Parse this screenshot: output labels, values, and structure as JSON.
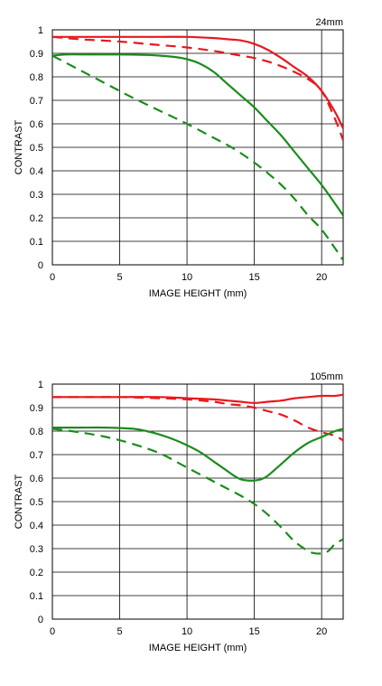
{
  "chart_data": [
    {
      "type": "line",
      "title": "24mm",
      "xlabel": "IMAGE HEIGHT (mm)",
      "ylabel": "CONTRAST",
      "xlim": [
        0,
        21.6
      ],
      "ylim": [
        0,
        1
      ],
      "xticks": [
        0,
        5,
        10,
        15,
        20
      ],
      "xtick_labels": [
        "0",
        "5",
        "10",
        "15",
        "20"
      ],
      "yticks": [
        0,
        0.1,
        0.2,
        0.3,
        0.4,
        0.5,
        0.6,
        0.7,
        0.8,
        0.9,
        1
      ],
      "ytick_labels": [
        "0",
        "0.1",
        "0.2",
        "0.3",
        "0.4",
        "0.5",
        "0.6",
        "0.7",
        "0.8",
        "0.9",
        "1"
      ],
      "grid": true,
      "series": [
        {
          "color": "#e8191e",
          "dash": "solid",
          "x": [
            0,
            2,
            5,
            8,
            10,
            12,
            13,
            14,
            15,
            16,
            17,
            18,
            19,
            20,
            21,
            21.6
          ],
          "y": [
            0.97,
            0.97,
            0.97,
            0.97,
            0.97,
            0.965,
            0.96,
            0.955,
            0.94,
            0.915,
            0.88,
            0.84,
            0.8,
            0.74,
            0.65,
            0.58
          ]
        },
        {
          "color": "#e8191e",
          "dash": "dashed",
          "x": [
            0,
            2,
            5,
            8,
            10,
            12,
            14,
            15,
            16,
            17,
            18,
            19,
            20,
            21,
            21.6
          ],
          "y": [
            0.97,
            0.96,
            0.95,
            0.935,
            0.925,
            0.91,
            0.89,
            0.88,
            0.865,
            0.845,
            0.82,
            0.79,
            0.74,
            0.62,
            0.53
          ]
        },
        {
          "color": "#1c8c1c",
          "dash": "solid",
          "x": [
            0,
            1,
            3,
            5,
            7,
            8,
            9,
            10,
            11,
            12,
            13,
            14,
            15,
            16,
            17,
            18,
            19,
            20,
            21,
            21.6
          ],
          "y": [
            0.89,
            0.895,
            0.895,
            0.895,
            0.893,
            0.89,
            0.885,
            0.875,
            0.855,
            0.82,
            0.77,
            0.72,
            0.67,
            0.61,
            0.55,
            0.48,
            0.41,
            0.34,
            0.26,
            0.21
          ]
        },
        {
          "color": "#1c8c1c",
          "dash": "dashed",
          "x": [
            0,
            2,
            4,
            6,
            8,
            10,
            12,
            13,
            14,
            15,
            16,
            17,
            18,
            19,
            20,
            21,
            21.6
          ],
          "y": [
            0.89,
            0.83,
            0.77,
            0.71,
            0.655,
            0.6,
            0.54,
            0.51,
            0.475,
            0.435,
            0.39,
            0.34,
            0.28,
            0.21,
            0.15,
            0.07,
            0.02
          ]
        }
      ]
    },
    {
      "type": "line",
      "title": "105mm",
      "xlabel": "IMAGE HEIGHT (mm)",
      "ylabel": "CONTRAST",
      "xlim": [
        0,
        21.6
      ],
      "ylim": [
        0,
        1
      ],
      "xticks": [
        0,
        5,
        10,
        15,
        20
      ],
      "xtick_labels": [
        "0",
        "5",
        "10",
        "15",
        "20"
      ],
      "yticks": [
        0,
        0.1,
        0.2,
        0.3,
        0.4,
        0.5,
        0.6,
        0.7,
        0.8,
        0.9,
        1
      ],
      "ytick_labels": [
        "0",
        "0.1",
        "0.2",
        "0.3",
        "0.4",
        "0.5",
        "0.6",
        "0.7",
        "0.8",
        "0.9",
        "1"
      ],
      "grid": true,
      "series": [
        {
          "color": "#e8191e",
          "dash": "solid",
          "x": [
            0,
            3,
            5,
            8,
            10,
            12,
            13,
            14,
            15,
            16,
            17,
            18,
            19,
            20,
            21,
            21.6
          ],
          "y": [
            0.945,
            0.945,
            0.945,
            0.945,
            0.94,
            0.935,
            0.93,
            0.925,
            0.92,
            0.925,
            0.93,
            0.94,
            0.945,
            0.95,
            0.95,
            0.955
          ]
        },
        {
          "color": "#e8191e",
          "dash": "dashed",
          "x": [
            0,
            3,
            5,
            8,
            10,
            12,
            13,
            14,
            15,
            16,
            17,
            18,
            19,
            20,
            21,
            21.6
          ],
          "y": [
            0.945,
            0.945,
            0.945,
            0.94,
            0.935,
            0.925,
            0.915,
            0.91,
            0.9,
            0.885,
            0.87,
            0.845,
            0.815,
            0.795,
            0.78,
            0.76
          ]
        },
        {
          "color": "#1c8c1c",
          "dash": "solid",
          "x": [
            0,
            2,
            4,
            6,
            7,
            8,
            9,
            10,
            11,
            12,
            13,
            13.5,
            14,
            14.5,
            15,
            15.5,
            16,
            17,
            18,
            19,
            20,
            21,
            21.6
          ],
          "y": [
            0.815,
            0.815,
            0.815,
            0.81,
            0.8,
            0.785,
            0.765,
            0.74,
            0.71,
            0.67,
            0.63,
            0.61,
            0.595,
            0.59,
            0.59,
            0.595,
            0.61,
            0.66,
            0.71,
            0.75,
            0.775,
            0.8,
            0.81
          ]
        },
        {
          "color": "#1c8c1c",
          "dash": "dashed",
          "x": [
            0,
            2,
            4,
            6,
            8,
            10,
            12,
            13,
            14,
            15,
            16,
            17,
            18,
            19,
            19.5,
            20,
            20.5,
            21,
            21.6
          ],
          "y": [
            0.81,
            0.795,
            0.775,
            0.745,
            0.705,
            0.645,
            0.585,
            0.555,
            0.525,
            0.49,
            0.445,
            0.39,
            0.33,
            0.29,
            0.28,
            0.28,
            0.29,
            0.32,
            0.34
          ]
        }
      ]
    }
  ]
}
